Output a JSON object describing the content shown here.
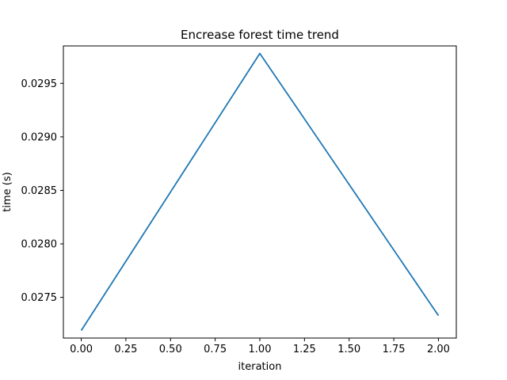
{
  "chart_data": {
    "type": "line",
    "title": "Encrease forest time trend",
    "xlabel": "iteration",
    "ylabel": "time (s)",
    "xlim": [
      -0.1,
      2.1
    ],
    "ylim": [
      0.02712,
      0.02985
    ],
    "grid": false,
    "series": [
      {
        "color": "#1f77b4",
        "x": [
          0,
          1,
          2
        ],
        "y": [
          0.02719,
          0.02978,
          0.02733
        ]
      }
    ],
    "xticks": [
      0.0,
      0.25,
      0.5,
      0.75,
      1.0,
      1.25,
      1.5,
      1.75,
      2.0
    ],
    "xtick_labels": [
      "0.00",
      "0.25",
      "0.50",
      "0.75",
      "1.00",
      "1.25",
      "1.50",
      "1.75",
      "2.00"
    ],
    "yticks": [
      0.0275,
      0.028,
      0.0285,
      0.029,
      0.0295
    ],
    "ytick_labels": [
      "0.0275",
      "0.0280",
      "0.0285",
      "0.0290",
      "0.0295"
    ]
  }
}
